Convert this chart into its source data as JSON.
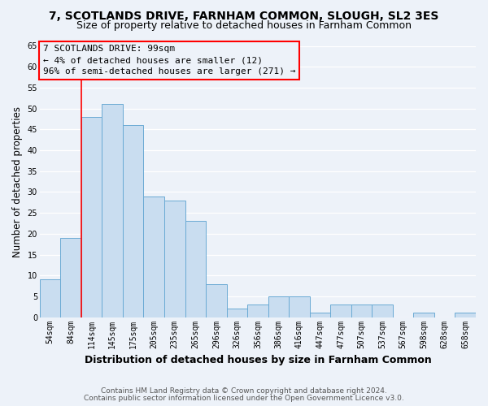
{
  "title1": "7, SCOTLANDS DRIVE, FARNHAM COMMON, SLOUGH, SL2 3ES",
  "title2": "Size of property relative to detached houses in Farnham Common",
  "xlabel": "Distribution of detached houses by size in Farnham Common",
  "ylabel": "Number of detached properties",
  "footer1": "Contains HM Land Registry data © Crown copyright and database right 2024.",
  "footer2": "Contains public sector information licensed under the Open Government Licence v3.0.",
  "bin_labels": [
    "54sqm",
    "84sqm",
    "114sqm",
    "145sqm",
    "175sqm",
    "205sqm",
    "235sqm",
    "265sqm",
    "296sqm",
    "326sqm",
    "356sqm",
    "386sqm",
    "416sqm",
    "447sqm",
    "477sqm",
    "507sqm",
    "537sqm",
    "567sqm",
    "598sqm",
    "628sqm",
    "658sqm"
  ],
  "values": [
    9,
    19,
    48,
    51,
    46,
    29,
    28,
    23,
    8,
    2,
    3,
    5,
    5,
    1,
    3,
    3,
    3,
    0,
    1,
    0,
    1
  ],
  "bar_color": "#c9ddf0",
  "bar_edge_color": "#6aaad4",
  "red_line_x": 1.5,
  "annotation_line1": "7 SCOTLANDS DRIVE: 99sqm",
  "annotation_line2": "← 4% of detached houses are smaller (12)",
  "annotation_line3": "96% of semi-detached houses are larger (271) →",
  "ylim": [
    0,
    65
  ],
  "yticks": [
    0,
    5,
    10,
    15,
    20,
    25,
    30,
    35,
    40,
    45,
    50,
    55,
    60,
    65
  ],
  "bg_color": "#edf2f9",
  "grid_color": "#ffffff",
  "title_fontsize": 10,
  "subtitle_fontsize": 9,
  "xlabel_fontsize": 9,
  "ylabel_fontsize": 8.5,
  "tick_fontsize": 7,
  "ann_fontsize": 8,
  "footer_fontsize": 6.5
}
